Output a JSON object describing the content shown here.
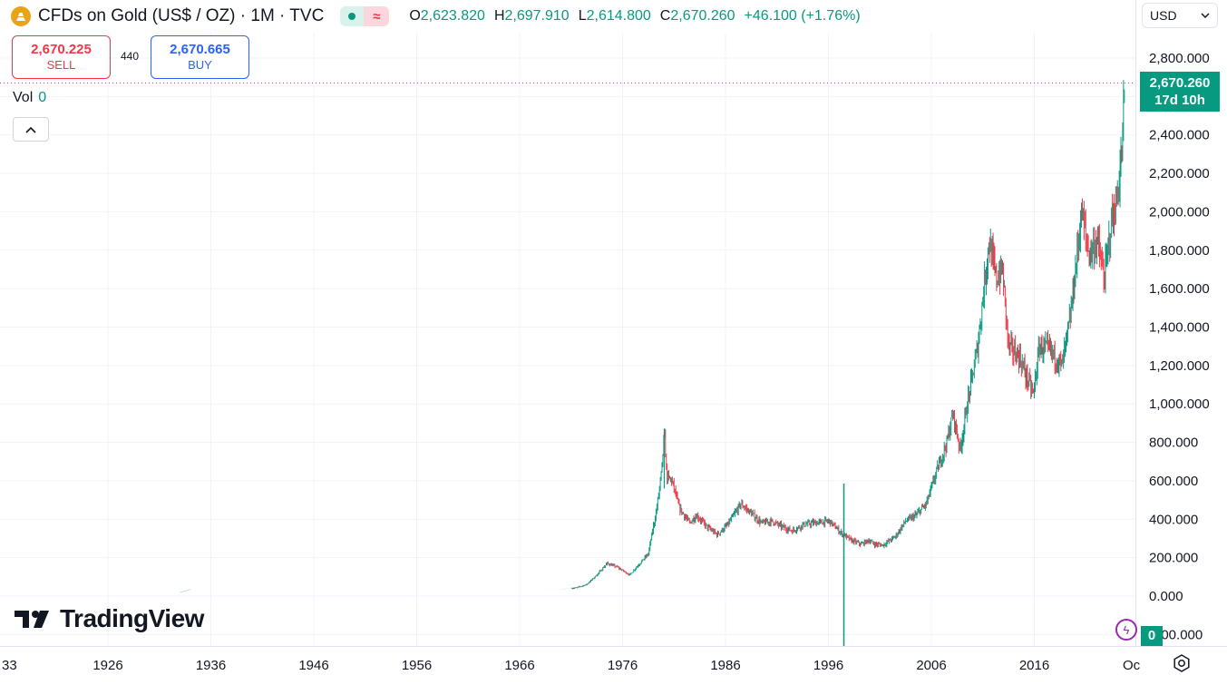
{
  "header": {
    "title": "CFDs on Gold (US$ / OZ) · 1M · TVC",
    "ohlc": [
      {
        "k": "O",
        "v": "2,623.820"
      },
      {
        "k": "H",
        "v": "2,697.910"
      },
      {
        "k": "L",
        "v": "2,614.800"
      },
      {
        "k": "C",
        "v": "2,670.260"
      }
    ],
    "change": "+46.100 (+1.76%)"
  },
  "trade": {
    "sell_price": "2,670.225",
    "sell_label": "SELL",
    "spread": "440",
    "buy_price": "2,670.665",
    "buy_label": "BUY"
  },
  "volume": {
    "label": "Vol",
    "value": "0"
  },
  "currency": "USD",
  "price_tag": {
    "price": "2,670.260",
    "countdown": "17d 10h"
  },
  "vol_tag": "0",
  "brand": "TradingView",
  "colors": {
    "up": "#089981",
    "down": "#f23645",
    "grid": "#f0f3fa",
    "text": "#131722"
  },
  "chart_data": {
    "type": "line",
    "title": "",
    "xlabel": "",
    "ylabel": "",
    "ylim": [
      -100,
      2850
    ],
    "xlim": [
      1918,
      2025
    ],
    "y_ticks": [
      "2,800.000",
      "2,600.000",
      "2,400.000",
      "2,200.000",
      "2,000.000",
      "1,800.000",
      "1,600.000",
      "1,400.000",
      "1,200.000",
      "1,000.000",
      "800.000",
      "600.000",
      "400.000",
      "200.000",
      "0.000",
      "-200.000"
    ],
    "y_tick_values": [
      2800,
      2600,
      2400,
      2200,
      2000,
      1800,
      1600,
      1400,
      1200,
      1000,
      800,
      600,
      400,
      200,
      0,
      -200
    ],
    "x_ticks": [
      "1926",
      "1936",
      "1946",
      "1956",
      "1966",
      "1976",
      "1986",
      "1996",
      "2006",
      "2016"
    ],
    "x_tick_values": [
      1926,
      1936,
      1946,
      1956,
      1966,
      1976,
      1986,
      1996,
      2006,
      2016
    ],
    "x_edge_labels": [
      "33",
      "Oc"
    ],
    "last_price": 2670.26,
    "grid": true,
    "series": [
      {
        "x": [
          1918,
          1933,
          1934,
          1945,
          1960,
          1968,
          1970,
          1971.5,
          1972.5,
          1973.5,
          1974.5,
          1975.5,
          1976.7,
          1977.5,
          1978.5,
          1979.3,
          1979.8,
          1980.05,
          1980.3,
          1980.8,
          1981.5,
          1982.5,
          1983.2,
          1984.2,
          1985.2,
          1986.2,
          1987.5,
          1988.5,
          1989.5,
          1990.5,
          1991.5,
          1992.5,
          1993.5,
          1994.5,
          1995.5,
          1996.1,
          1997.2,
          1998.2,
          1999.2,
          1999.9,
          2000.5,
          2001.3,
          2002.5,
          2003.5,
          2004.5,
          2005.5,
          2006.4,
          2007.5,
          2008.1,
          2008.8,
          2009.5,
          2010.5,
          2011.6,
          2012.3,
          2012.9,
          2013.5,
          2014.5,
          2015.9,
          2016.5,
          2017.5,
          2018.7,
          2019.5,
          2020.6,
          2021.3,
          2022.1,
          2022.8,
          2023.5,
          2024.0,
          2024.5,
          2024.8
        ],
        "y": [
          20,
          20,
          35,
          35,
          35,
          39,
          36,
          43,
          60,
          110,
          170,
          150,
          110,
          160,
          220,
          450,
          650,
          850,
          620,
          600,
          460,
          380,
          420,
          360,
          320,
          370,
          480,
          430,
          380,
          390,
          360,
          340,
          370,
          380,
          385,
          390,
          330,
          290,
          270,
          290,
          270,
          265,
          310,
          390,
          420,
          480,
          630,
          800,
          950,
          760,
          1000,
          1300,
          1850,
          1650,
          1700,
          1300,
          1250,
          1050,
          1300,
          1280,
          1200,
          1450,
          2000,
          1780,
          1850,
          1650,
          1950,
          2050,
          2300,
          2700
        ]
      }
    ]
  }
}
